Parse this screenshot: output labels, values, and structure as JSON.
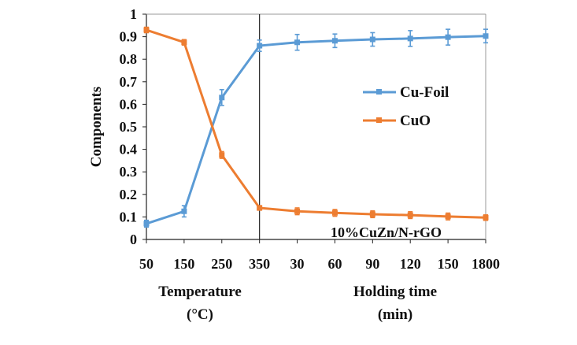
{
  "chart_data": {
    "type": "line",
    "title": "",
    "ylabel": "Components",
    "ylim": [
      0,
      1
    ],
    "yticks": [
      "0",
      "0.1",
      "0.2",
      "0.3",
      "0.4",
      "0.5",
      "0.6",
      "0.7",
      "0.8",
      "0.9",
      "1"
    ],
    "categories": [
      "50",
      "150",
      "250",
      "350",
      "30",
      "60",
      "90",
      "120",
      "150",
      "1800"
    ],
    "xlabel_temperature": [
      "Temperature",
      "(°C)"
    ],
    "xlabel_holding": [
      "Holding time",
      "(min)"
    ],
    "annotation": "10%CuZn/N-rGO",
    "series": [
      {
        "name": "Cu-Foil",
        "color": "#5b9bd5",
        "values": [
          0.07,
          0.125,
          0.63,
          0.86,
          0.875,
          0.882,
          0.888,
          0.892,
          0.898,
          0.903
        ],
        "errors": [
          0.015,
          0.025,
          0.035,
          0.025,
          0.035,
          0.03,
          0.03,
          0.035,
          0.035,
          0.03
        ]
      },
      {
        "name": "CuO",
        "color": "#ed7d31",
        "values": [
          0.93,
          0.875,
          0.375,
          0.14,
          0.125,
          0.118,
          0.112,
          0.108,
          0.102,
          0.097
        ],
        "errors": [
          0.012,
          0.012,
          0.015,
          0.01,
          0.015,
          0.015,
          0.015,
          0.015,
          0.015,
          0.012
        ]
      }
    ],
    "legend": "inside-right",
    "grid": false
  }
}
